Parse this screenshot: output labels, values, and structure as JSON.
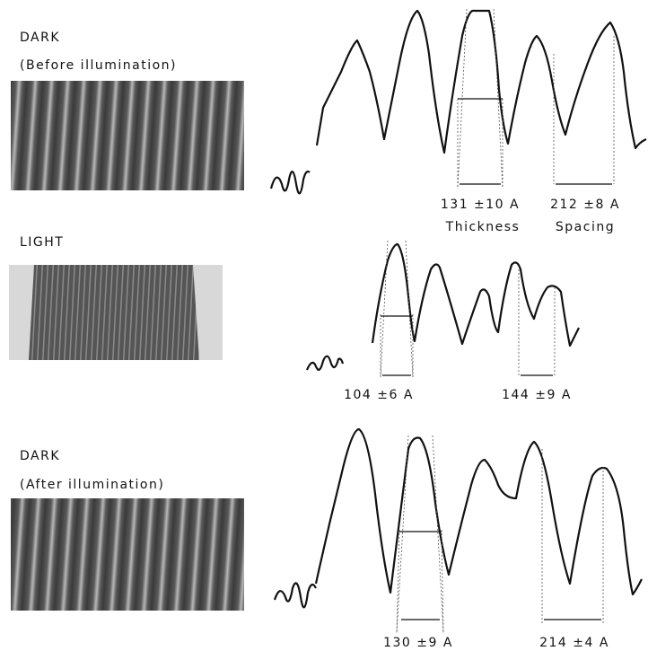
{
  "panels": [
    {
      "label": "DARK",
      "sublabel": "(Before illumination)",
      "thickness": "131 ±10 A",
      "spacing": "212 ±8 A",
      "thickness_caption": "Thickness",
      "spacing_caption": "Spacing"
    },
    {
      "label": "LIGHT",
      "thickness": "104 ±6 A",
      "spacing": "144 ±9 A"
    },
    {
      "label": "DARK",
      "sublabel": "(After illumination)",
      "thickness": "130 ±9 A",
      "spacing": "214 ±4 A"
    }
  ]
}
